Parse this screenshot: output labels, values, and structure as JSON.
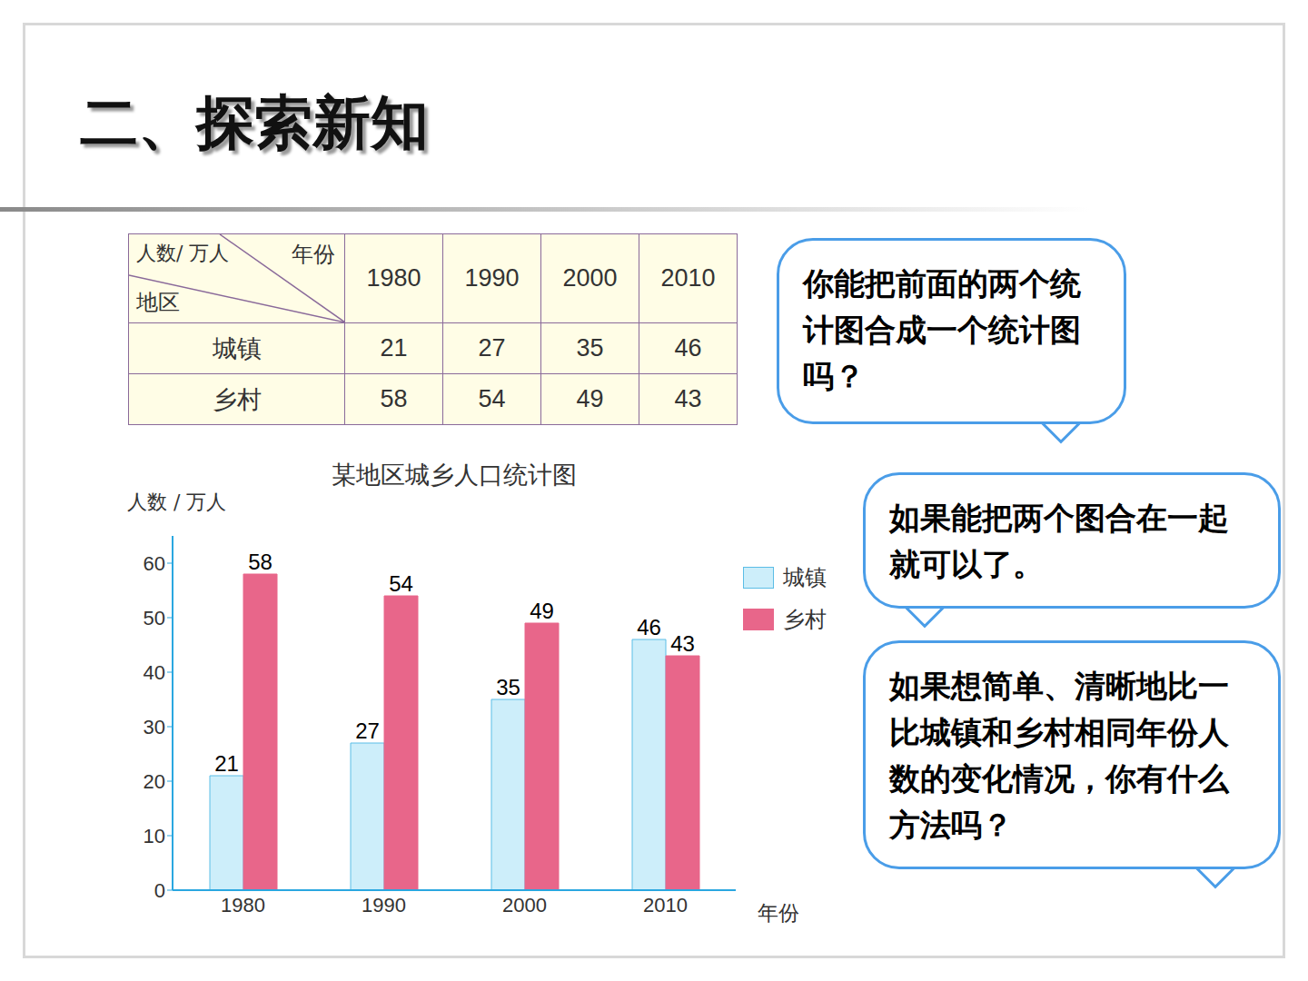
{
  "header": {
    "title": "二、探索新知"
  },
  "table": {
    "corner": {
      "unit": "人数/ 万人",
      "column_header": "年份",
      "row_header": "地区"
    },
    "columns": [
      "1980",
      "1990",
      "2000",
      "2010"
    ],
    "rows": [
      {
        "label": "城镇",
        "values": [
          21,
          27,
          35,
          46
        ]
      },
      {
        "label": "乡村",
        "values": [
          58,
          54,
          49,
          43
        ]
      }
    ]
  },
  "bubbles": [
    "你能把前面的两个统计图合成一个统计图吗？",
    "如果能把两个图合在一起就可以了。",
    "如果想简单、清晰地比一比城镇和乡村相同年份人数的变化情况，你有什么方法吗？"
  ],
  "chart_data": {
    "type": "bar",
    "title": "某地区城乡人口统计图",
    "y_label": "人数 / 万人",
    "x_label": "年份",
    "categories": [
      "1980",
      "1990",
      "2000",
      "2010"
    ],
    "series": [
      {
        "name": "城镇",
        "color": "#cdeefa",
        "values": [
          21,
          27,
          35,
          46
        ]
      },
      {
        "name": "乡村",
        "color": "#e8668a",
        "values": [
          58,
          54,
          49,
          43
        ]
      }
    ],
    "ylim": [
      0,
      65
    ],
    "yticks": [
      0,
      10,
      20,
      30,
      40,
      50,
      60
    ],
    "grid": false,
    "legend": "right",
    "data_labels": true
  }
}
